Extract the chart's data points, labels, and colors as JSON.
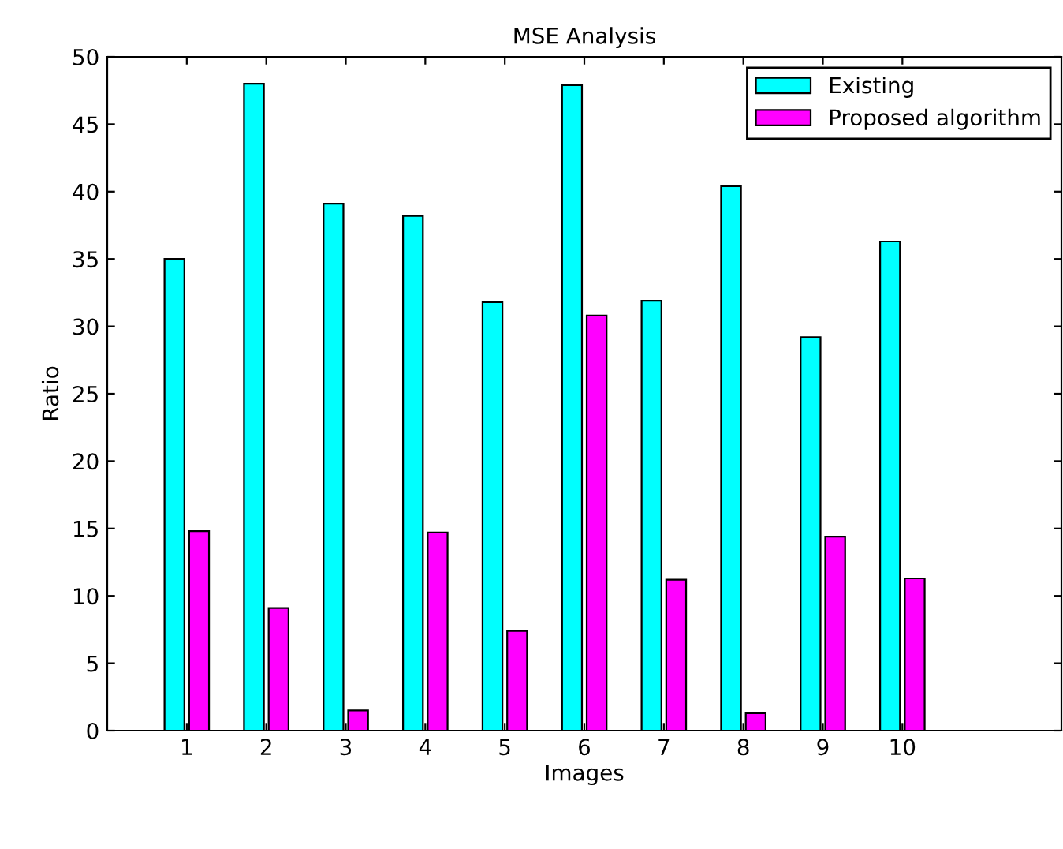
{
  "chart_data": {
    "type": "bar",
    "title": "MSE Analysis",
    "xlabel": "Images",
    "ylabel": "Ratio",
    "x": [
      1,
      2,
      3,
      4,
      5,
      6,
      7,
      8,
      9,
      10
    ],
    "series": [
      {
        "name": "Existing",
        "color": "#00ffff",
        "values": [
          35,
          48,
          39.1,
          38.2,
          31.8,
          47.9,
          31.9,
          40.4,
          29.2,
          36.3
        ]
      },
      {
        "name": "Proposed algorithm",
        "color": "#ff00ff",
        "values": [
          14.8,
          9.1,
          1.5,
          14.7,
          7.4,
          30.8,
          11.2,
          1.3,
          14.4,
          11.3
        ]
      }
    ],
    "xlim": [
      0,
      12
    ],
    "xticks": [
      1,
      2,
      3,
      4,
      5,
      6,
      7,
      8,
      9,
      10
    ],
    "ylim": [
      0,
      50
    ],
    "yticks": [
      0,
      5,
      10,
      15,
      20,
      25,
      30,
      35,
      40,
      45,
      50
    ],
    "grid": false,
    "legend": "top right"
  }
}
